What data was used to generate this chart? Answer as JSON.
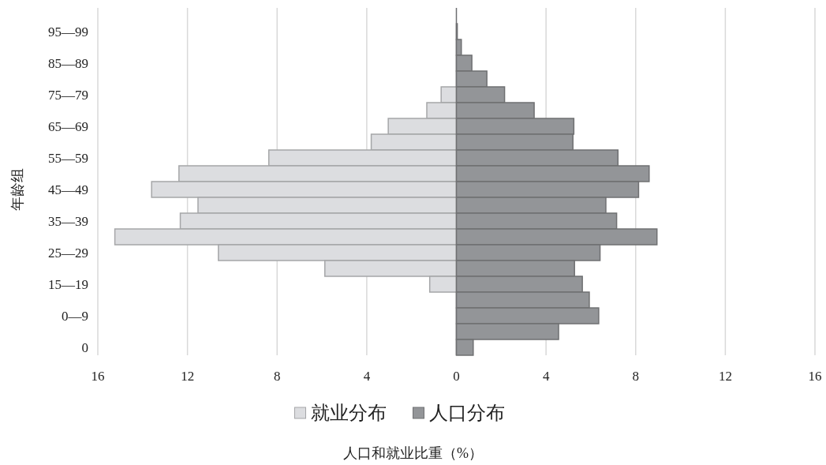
{
  "chart_data": {
    "type": "bar",
    "orientation": "horizontal",
    "xlabel": "人口和就业比重（%）",
    "ylabel": "年龄组",
    "categories": [
      "95—99",
      null,
      "85—89",
      null,
      "75—79",
      null,
      "65—69",
      null,
      "55—59",
      null,
      "45—49",
      null,
      "35—39",
      null,
      "25—29",
      null,
      "15—19",
      null,
      "0—9",
      null,
      "0"
    ],
    "series": [
      {
        "name": "就业分布",
        "color": "#dcdde0",
        "values": [
          null,
          null,
          null,
          null,
          -0.68,
          -1.32,
          -3.04,
          -3.8,
          -8.37,
          -12.38,
          -13.6,
          -11.53,
          -12.32,
          -15.24,
          -10.62,
          -5.87,
          -1.19,
          null,
          null,
          null,
          null
        ]
      },
      {
        "name": "人口分布",
        "color": "#939598",
        "values": [
          0.04,
          0.22,
          0.69,
          1.36,
          2.15,
          3.47,
          5.24,
          5.2,
          7.21,
          8.6,
          8.13,
          6.67,
          7.15,
          8.95,
          6.41,
          5.27,
          5.62,
          5.93,
          6.35,
          4.56,
          0.75
        ]
      }
    ],
    "xlim": [
      -16,
      16
    ],
    "xticks": [
      {
        "value": -16,
        "label": "16"
      },
      {
        "value": -12,
        "label": "12"
      },
      {
        "value": -8,
        "label": "8"
      },
      {
        "value": -4,
        "label": "4"
      },
      0,
      4,
      8,
      12,
      16
    ],
    "grid": "x",
    "legend": "bottom",
    "stacked": true
  }
}
